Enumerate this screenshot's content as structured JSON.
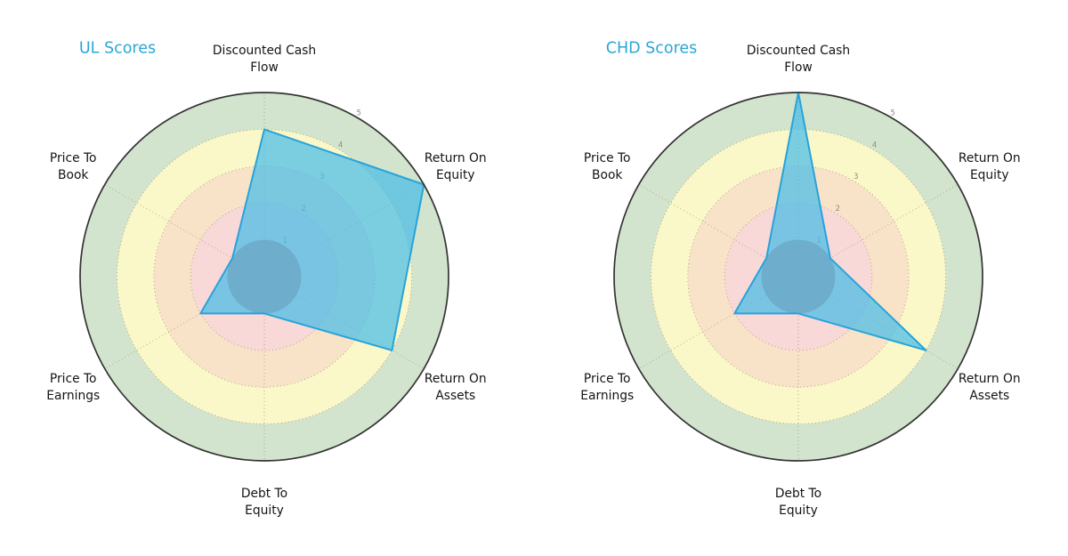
{
  "page": {
    "background": "#ffffff"
  },
  "chart_data": {
    "type": "radar",
    "titles": [
      "UL Scores",
      "CHD Scores"
    ],
    "categories": [
      "Discounted Cash Flow",
      "Return On Equity",
      "Return On Assets",
      "Debt To Equity",
      "Price To Earnings",
      "Price To Book"
    ],
    "categories_lines": [
      [
        "Discounted Cash",
        "Flow"
      ],
      [
        "Return On",
        "Equity"
      ],
      [
        "Return On",
        "Assets"
      ],
      [
        "Debt To",
        "Equity"
      ],
      [
        "Price To",
        "Earnings"
      ],
      [
        "Price To",
        "Book"
      ]
    ],
    "angles_deg": [
      90,
      30,
      -30,
      -90,
      -150,
      -210
    ],
    "series": [
      {
        "name": "UL",
        "title": "UL Scores",
        "values": [
          4,
          5,
          4,
          1,
          2,
          1
        ]
      },
      {
        "name": "CHD",
        "title": "CHD Scores",
        "values": [
          5,
          1,
          4,
          1,
          2,
          1
        ]
      }
    ],
    "rlim": [
      0,
      5
    ],
    "r_ticks": [
      1,
      2,
      3,
      4,
      5
    ],
    "tick_angle_deg": 60,
    "grid": "dotted",
    "legend": "none",
    "bands": [
      {
        "from": 0,
        "to": 1,
        "color": "#cf8b8b"
      },
      {
        "from": 1,
        "to": 2,
        "color": "#f9d8d8"
      },
      {
        "from": 2,
        "to": 3,
        "color": "#f8e3c8"
      },
      {
        "from": 3,
        "to": 4,
        "color": "#faf8c8"
      },
      {
        "from": 4,
        "to": 5,
        "color": "#d2e4cd"
      }
    ],
    "style": {
      "title_color": "#2ba6d6",
      "fill_color": "#45bce8",
      "fill_opacity": 0.7,
      "stroke_color": "#27a3da",
      "stroke_width": 2,
      "outer_circle_color": "#333333",
      "grid_color": "#a89980",
      "tick_label_color": "#8f8b82",
      "axis_label_color": "#141414"
    }
  }
}
